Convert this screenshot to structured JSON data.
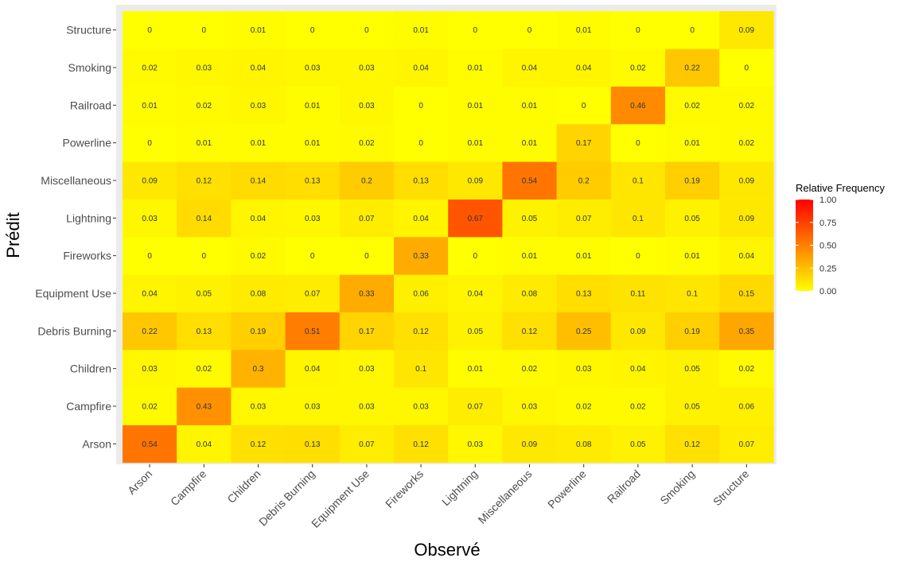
{
  "chart_data": {
    "type": "heatmap",
    "xlabel": "Observé",
    "ylabel": "Prédit",
    "x_categories": [
      "Arson",
      "Campfire",
      "Children",
      "Debris Burning",
      "Equipment Use",
      "Fireworks",
      "Lightning",
      "Miscellaneous",
      "Powerline",
      "Railroad",
      "Smoking",
      "Structure"
    ],
    "y_categories": [
      "Arson",
      "Campfire",
      "Children",
      "Debris Burning",
      "Equipment Use",
      "Fireworks",
      "Lightning",
      "Miscellaneous",
      "Powerline",
      "Railroad",
      "Smoking",
      "Structure"
    ],
    "values": [
      [
        0.54,
        0.04,
        0.12,
        0.13,
        0.07,
        0.12,
        0.03,
        0.09,
        0.08,
        0.05,
        0.12,
        0.07
      ],
      [
        0.02,
        0.43,
        0.03,
        0.03,
        0.03,
        0.03,
        0.07,
        0.03,
        0.02,
        0.02,
        0.05,
        0.06
      ],
      [
        0.03,
        0.02,
        0.3,
        0.04,
        0.03,
        0.1,
        0.01,
        0.02,
        0.03,
        0.04,
        0.05,
        0.02
      ],
      [
        0.22,
        0.13,
        0.19,
        0.51,
        0.17,
        0.12,
        0.05,
        0.12,
        0.25,
        0.09,
        0.19,
        0.35
      ],
      [
        0.04,
        0.05,
        0.08,
        0.07,
        0.33,
        0.06,
        0.04,
        0.08,
        0.13,
        0.11,
        0.1,
        0.15
      ],
      [
        0,
        0,
        0.02,
        0,
        0,
        0.33,
        0,
        0.01,
        0.01,
        0,
        0.01,
        0.04
      ],
      [
        0.03,
        0.14,
        0.04,
        0.03,
        0.07,
        0.04,
        0.67,
        0.05,
        0.07,
        0.1,
        0.05,
        0.09
      ],
      [
        0.09,
        0.12,
        0.14,
        0.13,
        0.2,
        0.13,
        0.09,
        0.54,
        0.2,
        0.1,
        0.19,
        0.09
      ],
      [
        0,
        0.01,
        0.01,
        0.01,
        0.02,
        0,
        0.01,
        0.01,
        0.17,
        0,
        0.01,
        0.02
      ],
      [
        0.01,
        0.02,
        0.03,
        0.01,
        0.03,
        0,
        0.01,
        0.01,
        0,
        0.46,
        0.02,
        0.02
      ],
      [
        0.02,
        0.03,
        0.04,
        0.03,
        0.03,
        0.04,
        0.01,
        0.04,
        0.04,
        0.02,
        0.22,
        0
      ],
      [
        0,
        0,
        0.01,
        0,
        0,
        0.01,
        0,
        0,
        0.01,
        0,
        0,
        0.09
      ]
    ],
    "legend": {
      "title": "Relative Frequency",
      "ticks": [
        "1.00",
        "0.75",
        "0.50",
        "0.25",
        "0.00"
      ],
      "range": [
        0,
        1
      ],
      "low_color": "#ffff00",
      "high_color": "#ff0000",
      "position": "right"
    },
    "panel_background": "#ebebeb"
  }
}
